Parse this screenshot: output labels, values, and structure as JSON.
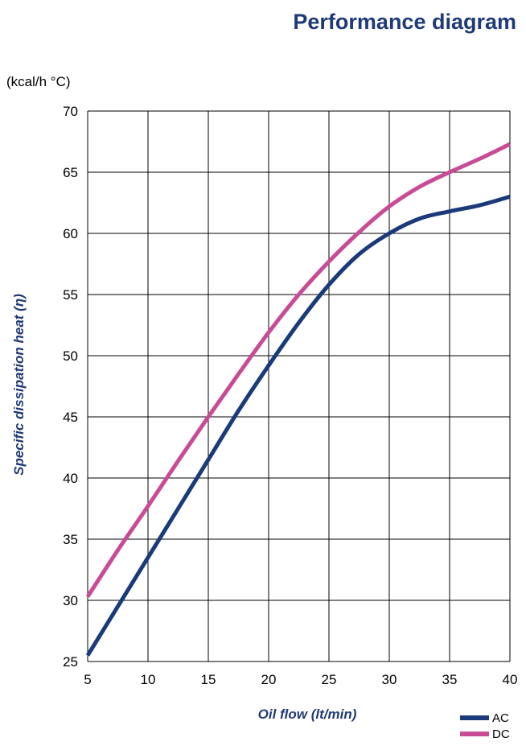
{
  "chart_data": {
    "type": "line",
    "title": "Performance diagram",
    "unit_label": "(kcal/h °C)",
    "xlabel": "Oil  flow  (lt/min)",
    "ylabel": "Specific dissipation heat (η)",
    "xlim": [
      5,
      40
    ],
    "ylim": [
      25,
      70
    ],
    "xticks": [
      5,
      10,
      15,
      20,
      25,
      30,
      35,
      40
    ],
    "yticks": [
      25,
      30,
      35,
      40,
      45,
      50,
      55,
      60,
      65,
      70
    ],
    "grid": true,
    "legend_position": "bottom-right",
    "series": [
      {
        "name": "AC",
        "color": "#1a3a7a",
        "x": [
          5,
          7.5,
          10,
          12.5,
          15,
          17.5,
          20,
          22.5,
          25,
          27.5,
          30,
          32.5,
          35,
          37.5,
          40
        ],
        "y": [
          25.5,
          29.5,
          33.5,
          37.5,
          41.5,
          45.5,
          49.2,
          52.7,
          55.8,
          58.3,
          60.0,
          61.2,
          61.8,
          62.3,
          63.0
        ]
      },
      {
        "name": "DC",
        "color": "#c74c95",
        "x": [
          5,
          7.5,
          10,
          12.5,
          15,
          17.5,
          20,
          22.5,
          25,
          27.5,
          30,
          32.5,
          35,
          37.5,
          40
        ],
        "y": [
          30.3,
          34.1,
          37.7,
          41.4,
          45.0,
          48.5,
          51.9,
          55.0,
          57.7,
          60.1,
          62.2,
          63.8,
          65.0,
          66.1,
          67.3
        ]
      }
    ]
  }
}
